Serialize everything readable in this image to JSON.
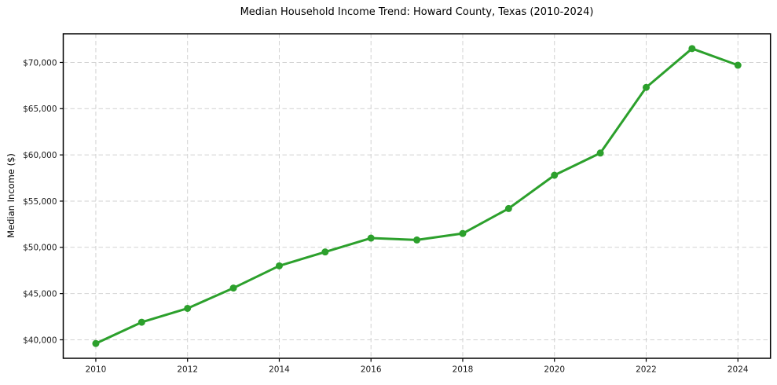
{
  "window": {
    "background": "#ffffff"
  },
  "chart_data": {
    "type": "line",
    "title": "Median Household Income Trend: Howard County, Texas (2010-2024)",
    "xlabel": "",
    "ylabel": "Median Income ($)",
    "x": [
      2010,
      2011,
      2012,
      2013,
      2014,
      2015,
      2016,
      2017,
      2018,
      2019,
      2020,
      2021,
      2022,
      2023,
      2024
    ],
    "series": [
      {
        "name": "Median household income",
        "color": "#2ca02c",
        "marker": "circle",
        "line_width": 3,
        "marker_diameter": 9,
        "values": [
          39600,
          41900,
          43400,
          45600,
          48000,
          49500,
          51000,
          50800,
          51500,
          54200,
          57800,
          60200,
          67300,
          71500,
          69700
        ]
      }
    ],
    "xticks": {
      "values": [
        2010,
        2012,
        2014,
        2016,
        2018,
        2020,
        2022,
        2024
      ],
      "labels": [
        "2010",
        "2012",
        "2014",
        "2016",
        "2018",
        "2020",
        "2022",
        "2024"
      ]
    },
    "yticks": {
      "values": [
        40000,
        45000,
        50000,
        55000,
        60000,
        65000,
        70000
      ],
      "labels": [
        "$40,000",
        "$45,000",
        "$50,000",
        "$55,000",
        "$60,000",
        "$65,000",
        "$70,000"
      ]
    },
    "xlim": [
      2009.29,
      2024.71
    ],
    "ylim": [
      38000,
      73100
    ],
    "grid": {
      "visible": true,
      "axis": "both",
      "line_style": "dashed",
      "color": "#d2d2d2"
    },
    "legend": {
      "visible": false
    },
    "frame_color": "#000000",
    "tick_color": "#000000",
    "text_color": "#1a1a1a"
  }
}
